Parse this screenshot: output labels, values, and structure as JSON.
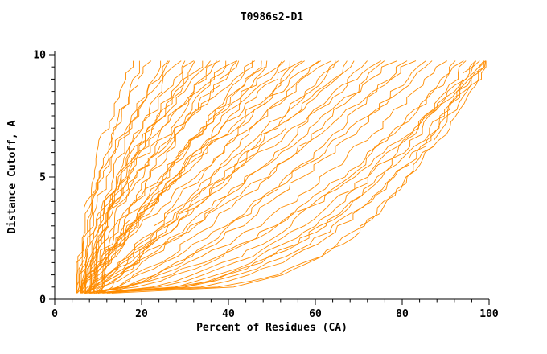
{
  "figure": {
    "background": "#ffffff"
  },
  "chart_data": {
    "type": "line",
    "title": "T0986s2-D1",
    "xlabel": "Percent of Residues (CA)",
    "ylabel": "Distance Cutoff, A",
    "xlim": [
      0,
      100
    ],
    "ylim": [
      0,
      10
    ],
    "x_ticks": [
      0,
      20,
      40,
      60,
      80,
      100
    ],
    "x_minor_step": 4,
    "y_ticks": [
      0,
      5,
      10
    ],
    "y_minor_step": 0.5,
    "legend": "none",
    "grid": false,
    "line_color": "#ff8c00",
    "axis_color": "#000000",
    "y_sample_start": 0.25,
    "y_sample_end": 9.75,
    "y_sample_step": 0.25,
    "series": [
      {
        "s": 5,
        "e": 18,
        "q": 2.0
      },
      {
        "s": 6,
        "e": 20,
        "q": 1.7
      },
      {
        "s": 5,
        "e": 22,
        "q": 1.9
      },
      {
        "s": 7,
        "e": 24,
        "q": 1.5
      },
      {
        "s": 6,
        "e": 26,
        "q": 1.8
      },
      {
        "s": 8,
        "e": 27,
        "q": 1.4
      },
      {
        "s": 5,
        "e": 28,
        "q": 2.1
      },
      {
        "s": 7,
        "e": 30,
        "q": 1.6
      },
      {
        "s": 6,
        "e": 31,
        "q": 1.3
      },
      {
        "s": 9,
        "e": 33,
        "q": 1.7
      },
      {
        "s": 5,
        "e": 34,
        "q": 1.5
      },
      {
        "s": 8,
        "e": 36,
        "q": 1.9
      },
      {
        "s": 6,
        "e": 37,
        "q": 1.2
      },
      {
        "s": 7,
        "e": 38,
        "q": 1.6
      },
      {
        "s": 10,
        "e": 40,
        "q": 1.4
      },
      {
        "s": 5,
        "e": 41,
        "q": 1.8
      },
      {
        "s": 8,
        "e": 42,
        "q": 1.3
      },
      {
        "s": 6,
        "e": 43,
        "q": 1.5
      },
      {
        "s": 9,
        "e": 45,
        "q": 1.1
      },
      {
        "s": 5,
        "e": 46,
        "q": 1.6
      },
      {
        "s": 7,
        "e": 48,
        "q": 1.2
      },
      {
        "s": 10,
        "e": 49,
        "q": 1.4
      },
      {
        "s": 6,
        "e": 50,
        "q": 1.0
      },
      {
        "s": 8,
        "e": 52,
        "q": 1.5
      },
      {
        "s": 5,
        "e": 53,
        "q": 1.1
      },
      {
        "s": 9,
        "e": 55,
        "q": 1.3
      },
      {
        "s": 7,
        "e": 56,
        "q": 0.9
      },
      {
        "s": 6,
        "e": 58,
        "q": 1.2
      },
      {
        "s": 11,
        "e": 60,
        "q": 1.0
      },
      {
        "s": 8,
        "e": 61,
        "q": 1.4
      },
      {
        "s": 5,
        "e": 63,
        "q": 1.1
      },
      {
        "s": 9,
        "e": 65,
        "q": 0.9
      },
      {
        "s": 7,
        "e": 66,
        "q": 1.0
      },
      {
        "s": 6,
        "e": 68,
        "q": 0.85
      },
      {
        "s": 10,
        "e": 70,
        "q": 1.1
      },
      {
        "s": 8,
        "e": 72,
        "q": 0.8
      },
      {
        "s": 5,
        "e": 74,
        "q": 0.95
      },
      {
        "s": 9,
        "e": 76,
        "q": 0.75
      },
      {
        "s": 7,
        "e": 78,
        "q": 0.9
      },
      {
        "s": 12,
        "e": 80,
        "q": 0.7
      },
      {
        "s": 6,
        "e": 82,
        "q": 0.85
      },
      {
        "s": 8,
        "e": 85,
        "q": 0.65
      },
      {
        "s": 10,
        "e": 87,
        "q": 0.8
      },
      {
        "s": 7,
        "e": 90,
        "q": 0.6
      },
      {
        "s": 9,
        "e": 92,
        "q": 0.5
      },
      {
        "s": 6,
        "e": 94,
        "q": 0.55
      },
      {
        "s": 11,
        "e": 95,
        "q": 0.45
      },
      {
        "s": 8,
        "e": 96,
        "q": 0.4
      },
      {
        "s": 10,
        "e": 97,
        "q": 0.5
      },
      {
        "s": 7,
        "e": 98,
        "q": 0.35
      },
      {
        "s": 12,
        "e": 99,
        "q": 0.45
      },
      {
        "s": 9,
        "e": 100,
        "q": 0.4
      },
      {
        "s": 6,
        "e": 100,
        "q": 0.6
      },
      {
        "s": 13,
        "e": 97,
        "q": 0.3
      },
      {
        "s": 8,
        "e": 99,
        "q": 0.3
      }
    ]
  }
}
